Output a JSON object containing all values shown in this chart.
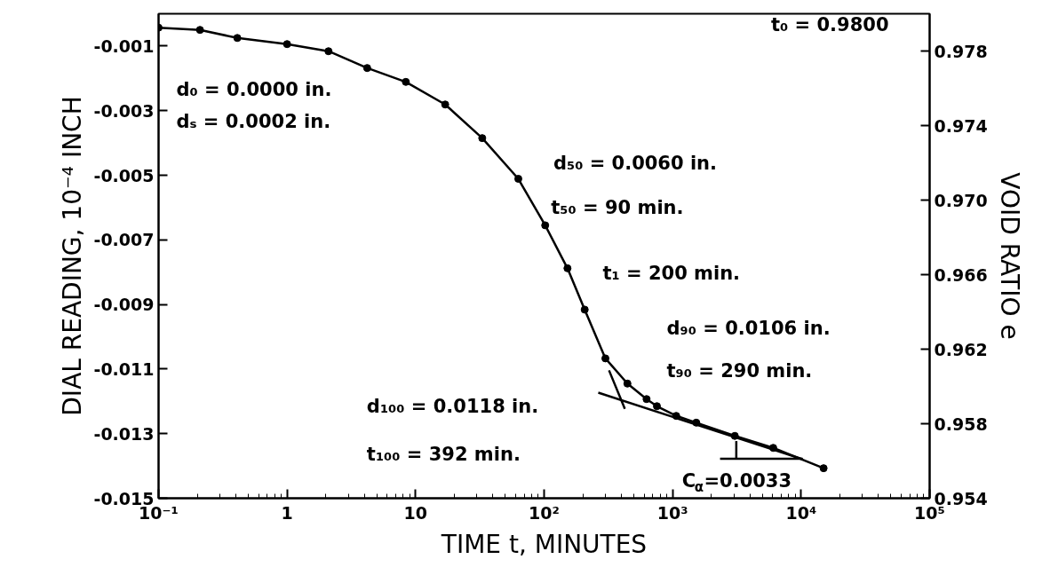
{
  "chart_data": {
    "type": "line",
    "xlabel": "TIME t, MINUTES",
    "ylabel": "DIAL READING, 10⁻⁴ INCH",
    "y2label": "VOID RATIO e",
    "log": "x",
    "xlim": [
      0.1,
      100000
    ],
    "xticks": [
      {
        "value": 0.1,
        "label": "10⁻¹"
      },
      {
        "value": 1,
        "label": "1"
      },
      {
        "value": 10,
        "label": "10"
      },
      {
        "value": 100,
        "label": "10²"
      },
      {
        "value": 1000,
        "label": "10³"
      },
      {
        "value": 10000,
        "label": "10⁴"
      },
      {
        "value": 100000,
        "label": "10⁵"
      }
    ],
    "ylim": [
      -0.015,
      0
    ],
    "yticks": [
      -0.015,
      -0.013,
      -0.011,
      -0.009,
      -0.007,
      -0.005,
      -0.003,
      -0.001
    ],
    "y2lim": [
      0.954,
      0.98
    ],
    "y2ticks": [
      0.954,
      0.958,
      0.962,
      0.966,
      {
        "value": 0.97,
        "label": "0.970"
      },
      0.974,
      0.978
    ],
    "grid": false,
    "series": [
      {
        "color": "#000000",
        "marker": "circle",
        "line_style": "solid",
        "x": [
          0.1,
          0.21,
          0.41,
          1.0,
          2.1,
          4.2,
          8.4,
          17,
          33,
          63,
          102,
          152,
          207,
          300,
          445,
          627,
          755,
          1067,
          1528,
          3048,
          6067,
          14960
        ],
        "values": [
          -0.00043,
          -0.0005,
          -0.00075,
          -0.00094,
          -0.00116,
          -0.00168,
          -0.00211,
          -0.00281,
          -0.00385,
          -0.00511,
          -0.00655,
          -0.00788,
          -0.00916,
          -0.01067,
          -0.01145,
          -0.01193,
          -0.01215,
          -0.01245,
          -0.01266,
          -0.01307,
          -0.01344,
          -0.01407
        ]
      },
      {
        "color": "#000000",
        "marker": "none",
        "line_style": "solid",
        "x": [
          320,
          425
        ],
        "values": [
          -0.01104,
          -0.01223
        ]
      },
      {
        "color": "#000000",
        "marker": "none",
        "line_style": "solid",
        "x": [
          264,
          10260
        ],
        "values": [
          -0.01173,
          -0.01379
        ]
      },
      {
        "color": "#000000",
        "marker": "none",
        "line_style": "solid",
        "x": [
          2340,
          10260
        ],
        "values": [
          -0.01378,
          -0.01378
        ]
      },
      {
        "color": "#000000",
        "marker": "none",
        "line_style": "solid",
        "x": [
          3130,
          3130
        ],
        "values": [
          -0.01323,
          -0.01378
        ]
      }
    ],
    "annotations": [
      "d₀ = 0.0000 in.",
      "dₛ = 0.0002 in.",
      "t₀ = 0.9800",
      "d₅₀ = 0.0060 in.",
      "t₅₀ = 90 min.",
      "t₁ = 200 min.",
      "d₉₀ = 0.0106 in.",
      "t₉₀ = 290 min.",
      "d₁₀₀ = 0.0118 in.",
      "t₁₀₀ = 392 min.",
      "C$_{α}$=0.0033"
    ]
  }
}
